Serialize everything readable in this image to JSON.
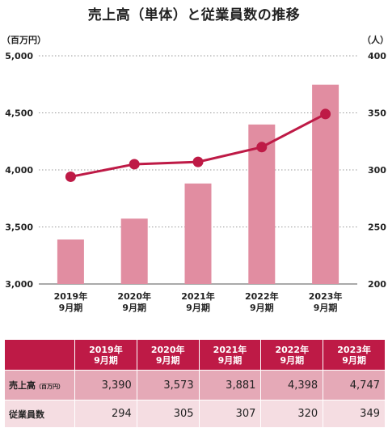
{
  "title": "売上高（単体）と従業員数の推移",
  "chart_data": {
    "type": "bar+line",
    "categories": [
      [
        "2019年",
        "9月期"
      ],
      [
        "2020年",
        "9月期"
      ],
      [
        "2021年",
        "9月期"
      ],
      [
        "2022年",
        "9月期"
      ],
      [
        "2023年",
        "9月期"
      ]
    ],
    "series": [
      {
        "name": "売上高",
        "type": "bar",
        "axis": "left",
        "values": [
          3390,
          3573,
          3881,
          4398,
          4747
        ],
        "color": "#e18da1"
      },
      {
        "name": "従業員数",
        "type": "line",
        "axis": "right",
        "values": [
          294,
          305,
          307,
          320,
          349
        ],
        "color": "#be1a46"
      }
    ],
    "y_left": {
      "unit": "（百万円）",
      "min": 3000,
      "max": 5000,
      "ticks": [
        "3,000",
        "3,500",
        "4,000",
        "4,500",
        "5,000"
      ]
    },
    "y_right": {
      "unit": "（人）",
      "min": 200,
      "max": 400,
      "ticks": [
        "200",
        "250",
        "300",
        "350",
        "400"
      ]
    },
    "grid": "dotted-horizontal",
    "legend": "none"
  },
  "table": {
    "headers": [
      [
        "2019年",
        "9月期"
      ],
      [
        "2020年",
        "9月期"
      ],
      [
        "2021年",
        "9月期"
      ],
      [
        "2022年",
        "9月期"
      ],
      [
        "2023年",
        "9月期"
      ]
    ],
    "rows": [
      {
        "label": "売上高",
        "sublabel": "（百万円）",
        "values": [
          "3,390",
          "3,573",
          "3,881",
          "4,398",
          "4,747"
        ]
      },
      {
        "label": "従業員数",
        "sublabel": "",
        "values": [
          "294",
          "305",
          "307",
          "320",
          "349"
        ]
      }
    ]
  },
  "colors": {
    "accent": "#be1a46",
    "bar": "#e18da1",
    "row1": "#e5a9b7",
    "row2": "#f5dde2"
  }
}
